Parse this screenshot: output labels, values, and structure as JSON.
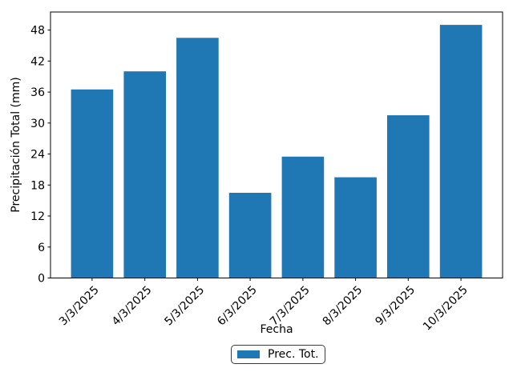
{
  "chart_data": {
    "type": "bar",
    "title": "",
    "xlabel": "Fecha",
    "ylabel": "Precipitación Total (mm)",
    "categories": [
      "3/3/2025",
      "4/3/2025",
      "5/3/2025",
      "6/3/2025",
      "7/3/2025",
      "8/3/2025",
      "9/3/2025",
      "10/3/2025"
    ],
    "series": [
      {
        "name": "Prec. Tot.",
        "values": [
          36.5,
          40,
          46.5,
          16.5,
          23.5,
          19.5,
          31.5,
          49
        ]
      }
    ],
    "yticks": [
      0,
      6,
      12,
      18,
      24,
      30,
      36,
      42,
      48
    ],
    "ylim": [
      0,
      51.5
    ],
    "bar_color": "#1f77b4",
    "axis_color": "#000000",
    "grid": false,
    "legend_position": "bottom-center",
    "x_tick_rotation_deg": 45
  }
}
